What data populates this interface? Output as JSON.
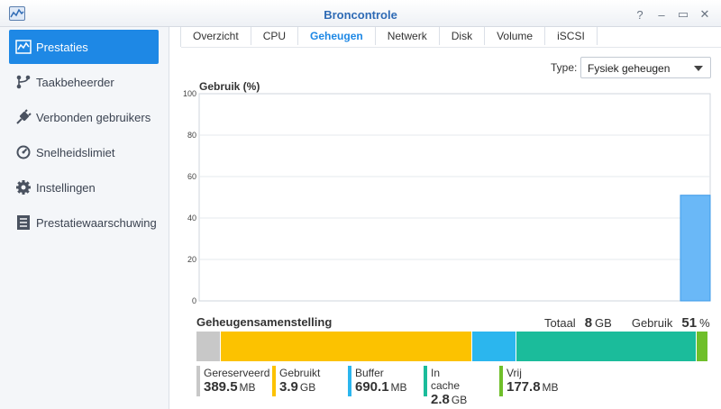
{
  "window": {
    "title": "Broncontrole",
    "buttons": [
      "?",
      "–",
      "▭",
      "✕"
    ]
  },
  "sidebar": {
    "items": [
      {
        "label": "Prestaties",
        "icon": "performance-chart-icon",
        "active": true
      },
      {
        "label": "Taakbeheerder",
        "icon": "task-manager-icon",
        "active": false
      },
      {
        "label": "Verbonden gebruikers",
        "icon": "plug-icon",
        "active": false
      },
      {
        "label": "Snelheidslimiet",
        "icon": "speed-limit-icon",
        "active": false
      },
      {
        "label": "Instellingen",
        "icon": "gear-icon",
        "active": false
      },
      {
        "label": "Prestatiewaarschuwing",
        "icon": "alert-list-icon",
        "active": false
      }
    ]
  },
  "tabs": [
    {
      "label": "Overzicht",
      "active": false
    },
    {
      "label": "CPU",
      "active": false
    },
    {
      "label": "Geheugen",
      "active": true
    },
    {
      "label": "Netwerk",
      "active": false
    },
    {
      "label": "Disk",
      "active": false
    },
    {
      "label": "Volume",
      "active": false
    },
    {
      "label": "iSCSI",
      "active": false
    }
  ],
  "type_selector": {
    "label": "Type:",
    "value": "Fysiek geheugen"
  },
  "chart_data": {
    "type": "area",
    "title": "Gebruik (%)",
    "ylim": [
      0,
      100
    ],
    "yticks": [
      0,
      20,
      40,
      60,
      80,
      100
    ],
    "grid": true,
    "series": [
      {
        "values": [
          51
        ]
      }
    ],
    "color": "#6ab8f7"
  },
  "composition": {
    "title": "Geheugensamenstelling",
    "total_label": "Totaal",
    "total_value": "8",
    "total_unit": "GB",
    "usage_label": "Gebruik",
    "usage_value": "51",
    "usage_unit": "%",
    "segments": [
      {
        "name": "Gereserveerd",
        "value": "389.5",
        "unit": "MB",
        "color": "#c8c8c8",
        "share": 0.048
      },
      {
        "name": "Gebruikt",
        "value": "3.9",
        "unit": "GB",
        "color": "#fcc200",
        "share": 0.487
      },
      {
        "name": "Buffer",
        "value": "690.1",
        "unit": "MB",
        "color": "#2bb6ee",
        "share": 0.086
      },
      {
        "name": "In cache",
        "value": "2.8",
        "unit": "GB",
        "color": "#1bbc9b",
        "share": 0.35
      },
      {
        "name": "Vrij",
        "value": "177.8",
        "unit": "MB",
        "color": "#6fbf2a",
        "share": 0.022
      }
    ]
  }
}
